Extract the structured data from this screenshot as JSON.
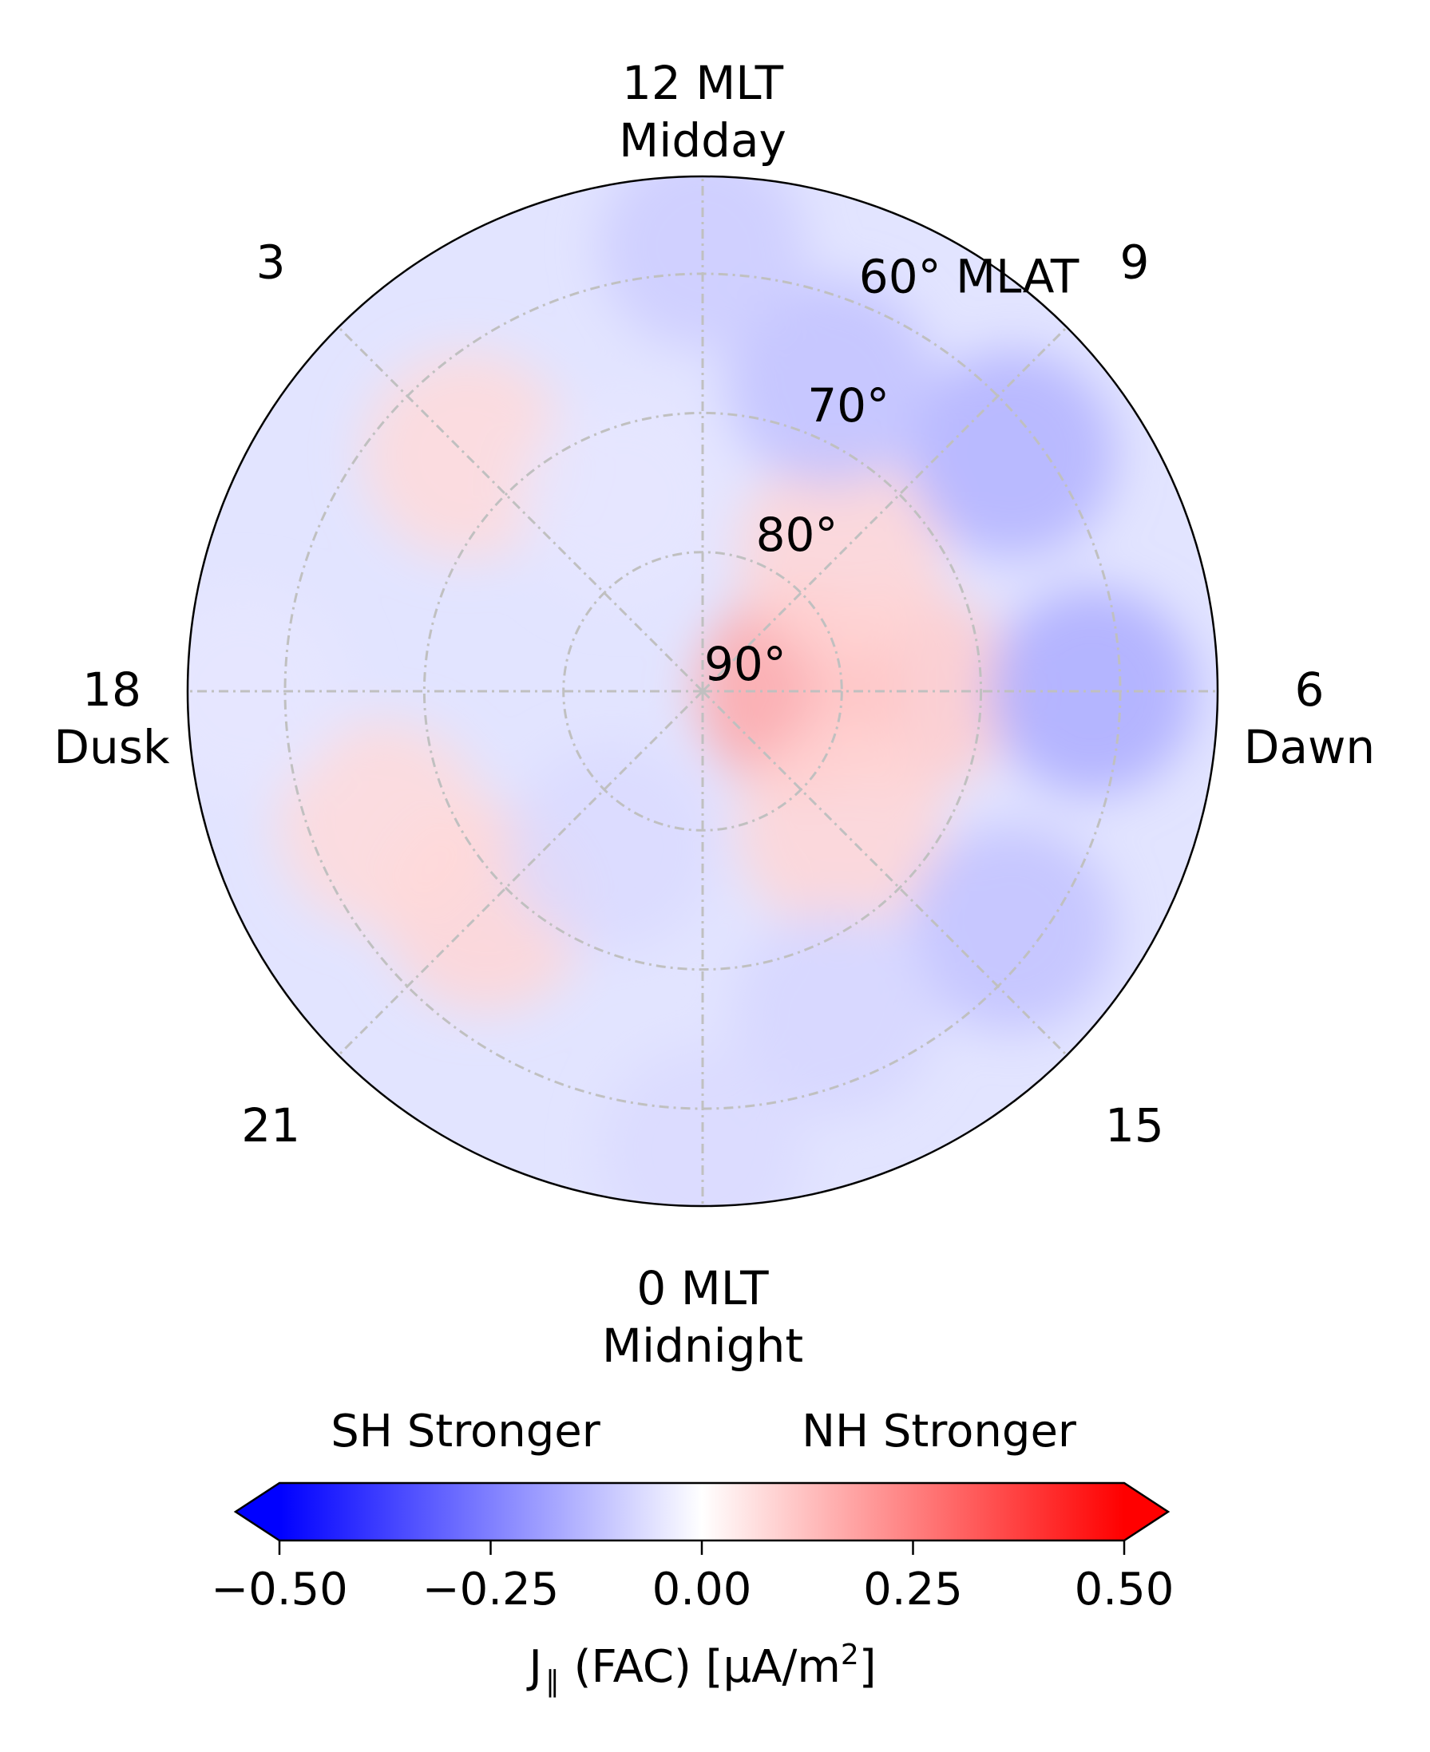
{
  "chart_data": {
    "type": "heatmap",
    "projection": "polar",
    "title": "",
    "mlt_labels": [
      {
        "mlt": 12,
        "text": "12 MLT",
        "subtext": "Midday"
      },
      {
        "mlt": 15,
        "text": "15",
        "subtext": ""
      },
      {
        "mlt": 18,
        "text": "18",
        "subtext": "Dusk"
      },
      {
        "mlt": 21,
        "text": "21",
        "subtext": ""
      },
      {
        "mlt": 0,
        "text": "0 MLT",
        "subtext": "Midnight"
      },
      {
        "mlt": 3,
        "text": "3",
        "subtext": ""
      },
      {
        "mlt": 6,
        "text": "6",
        "subtext": "Dawn"
      },
      {
        "mlt": 9,
        "text": "9",
        "subtext": ""
      }
    ],
    "mlat_labels": [
      {
        "mlat": 90,
        "text": "90°"
      },
      {
        "mlat": 80,
        "text": "80°"
      },
      {
        "mlat": 70,
        "text": "70°"
      },
      {
        "mlat": 60,
        "text": "60° MLAT"
      }
    ],
    "mlat_range": [
      53,
      90
    ],
    "regions": [
      {
        "mlt": 12,
        "mlat": 83,
        "value": 0.17
      },
      {
        "mlt": 12,
        "mlat": 75,
        "value": 0.1
      },
      {
        "mlt": 15,
        "mlat": 76,
        "value": 0.08
      },
      {
        "mlt": 9,
        "mlat": 76,
        "value": 0.08
      },
      {
        "mlt": 12,
        "mlat": 62,
        "value": -0.16
      },
      {
        "mlt": 14.5,
        "mlat": 62,
        "value": -0.12
      },
      {
        "mlt": 9.5,
        "mlat": 62,
        "value": -0.15
      },
      {
        "mlt": 7.5,
        "mlat": 66,
        "value": -0.12
      },
      {
        "mlt": 16.5,
        "mlat": 65,
        "value": -0.08
      },
      {
        "mlt": 6,
        "mlat": 58,
        "value": -0.1
      },
      {
        "mlt": 18,
        "mlat": 57,
        "value": -0.07
      },
      {
        "mlt": 21,
        "mlat": 68,
        "value": 0.08
      },
      {
        "mlt": 22.5,
        "mlat": 65,
        "value": 0.07
      },
      {
        "mlt": 3,
        "mlat": 66,
        "value": 0.07
      },
      {
        "mlt": 20,
        "mlat": 77,
        "value": -0.07
      },
      {
        "mlt": 4.5,
        "mlat": 75,
        "value": -0.05
      },
      {
        "mlt": 0,
        "mlat": 57,
        "value": -0.05
      }
    ],
    "colorbar": {
      "colormap": "bwr",
      "vmin": -0.5,
      "vmax": 0.5,
      "ticks": [
        -0.5,
        -0.25,
        0.0,
        0.25,
        0.5
      ],
      "tick_labels": [
        "−0.50",
        "−0.25",
        "0.00",
        "0.25",
        "0.50"
      ],
      "extend": "both",
      "label_main": "J",
      "label_sub": "∥",
      "label_rest": " (FAC) [μA/m",
      "label_sup": "2",
      "label_end": "]",
      "left_annotation": "SH Stronger",
      "right_annotation": "NH Stronger"
    },
    "colors": {
      "negative": "#0000ff",
      "zero": "#ffffff",
      "positive": "#ff0000",
      "grid": "#c0c0c0"
    },
    "grid": true
  }
}
